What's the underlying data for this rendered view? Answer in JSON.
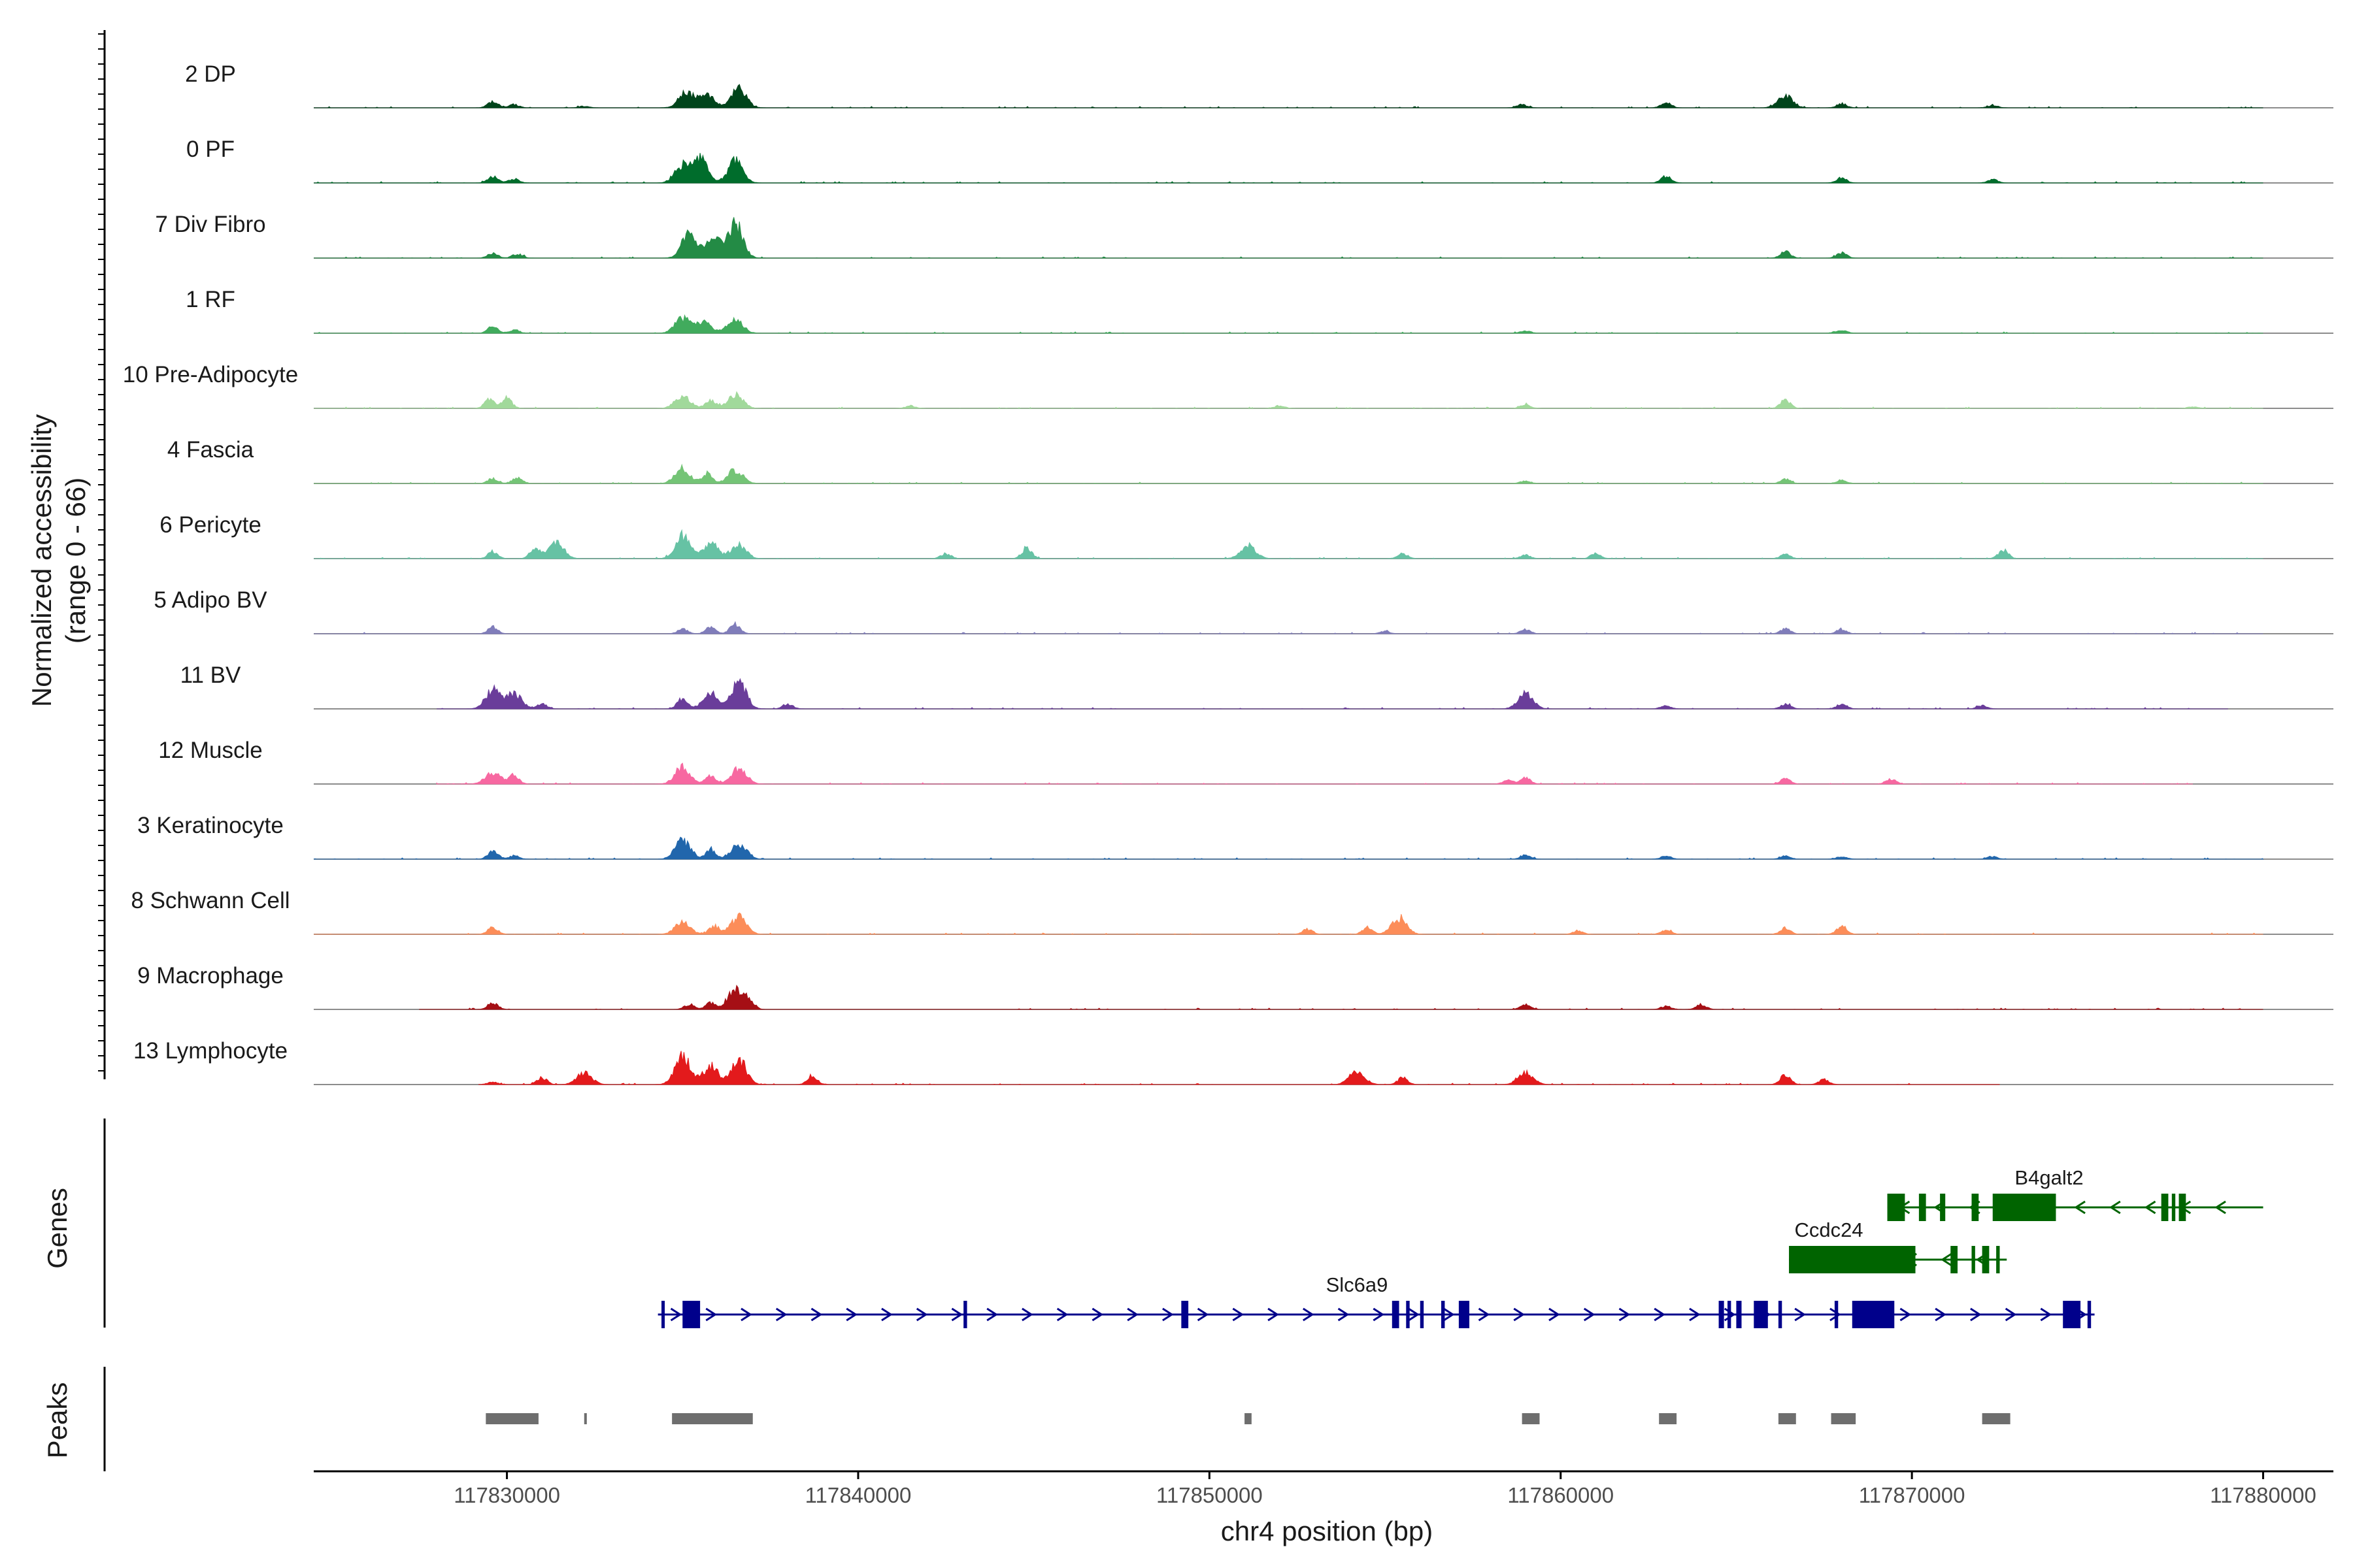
{
  "chart_data": {
    "type": "area",
    "title": "",
    "ylabel_line1": "Normalized accessibility",
    "ylabel_line2": "(range 0 - 66)",
    "xlabel": "chr4 position (bp)",
    "ylim": [
      0,
      66
    ],
    "xlim": [
      117824500,
      117882000
    ],
    "x_ticks": [
      117830000,
      117840000,
      117850000,
      117860000,
      117870000,
      117880000
    ],
    "x_tick_labels": [
      "117830000",
      "117840000",
      "117850000",
      "117860000",
      "117870000",
      "117880000"
    ],
    "tracks_label": "Genes",
    "peaks_label": "Peaks",
    "series": [
      {
        "name": "2 DP",
        "color": "#00441b",
        "start": 117824500,
        "end": 117880000,
        "peaks": [
          [
            117829600,
            8
          ],
          [
            117830200,
            4
          ],
          [
            117832200,
            2
          ],
          [
            117835100,
            18
          ],
          [
            117835700,
            16
          ],
          [
            117836600,
            22
          ],
          [
            117858900,
            4
          ],
          [
            117863000,
            6
          ],
          [
            117866400,
            14
          ],
          [
            117868000,
            5
          ],
          [
            117872300,
            3
          ]
        ]
      },
      {
        "name": "0 PF",
        "color": "#006d2c",
        "start": 117824500,
        "end": 117880000,
        "peaks": [
          [
            117829600,
            8
          ],
          [
            117830200,
            5
          ],
          [
            117835000,
            20
          ],
          [
            117835500,
            28
          ],
          [
            117836500,
            26
          ],
          [
            117863000,
            8
          ],
          [
            117868000,
            6
          ],
          [
            117872300,
            4
          ]
        ]
      },
      {
        "name": "7 Div Fibro",
        "color": "#238b45",
        "start": 117824500,
        "end": 117880000,
        "peaks": [
          [
            117829600,
            6
          ],
          [
            117830300,
            5
          ],
          [
            117835200,
            30
          ],
          [
            117835900,
            22
          ],
          [
            117836500,
            40
          ],
          [
            117866400,
            8
          ],
          [
            117868000,
            6
          ]
        ]
      },
      {
        "name": "1 RF",
        "color": "#41ab5d",
        "start": 117824500,
        "end": 117880000,
        "peaks": [
          [
            117829600,
            8
          ],
          [
            117830200,
            4
          ],
          [
            117835000,
            18
          ],
          [
            117835600,
            14
          ],
          [
            117836500,
            16
          ],
          [
            117859000,
            3
          ],
          [
            117868000,
            4
          ]
        ]
      },
      {
        "name": "10 Pre-Adipocyte",
        "color": "#a1d99b",
        "start": 117824500,
        "end": 117880000,
        "peaks": [
          [
            117829500,
            10
          ],
          [
            117830000,
            12
          ],
          [
            117835000,
            14
          ],
          [
            117835800,
            10
          ],
          [
            117836500,
            16
          ],
          [
            117841500,
            3
          ],
          [
            117852000,
            3
          ],
          [
            117859000,
            4
          ],
          [
            117866400,
            10
          ],
          [
            117878000,
            2
          ]
        ]
      },
      {
        "name": "4 Fascia",
        "color": "#74c476",
        "start": 117824500,
        "end": 117880000,
        "peaks": [
          [
            117829600,
            6
          ],
          [
            117830300,
            7
          ],
          [
            117835000,
            18
          ],
          [
            117835700,
            12
          ],
          [
            117836500,
            16
          ],
          [
            117859000,
            3
          ],
          [
            117866400,
            5
          ],
          [
            117868000,
            4
          ]
        ]
      },
      {
        "name": "6 Pericyte",
        "color": "#66c2a4",
        "start": 117824500,
        "end": 117880000,
        "peaks": [
          [
            117829600,
            8
          ],
          [
            117830800,
            12
          ],
          [
            117831400,
            18
          ],
          [
            117835000,
            26
          ],
          [
            117835800,
            18
          ],
          [
            117836600,
            16
          ],
          [
            117842500,
            6
          ],
          [
            117844800,
            12
          ],
          [
            117851100,
            16
          ],
          [
            117855500,
            6
          ],
          [
            117859000,
            4
          ],
          [
            117861000,
            6
          ],
          [
            117866400,
            5
          ],
          [
            117872600,
            10
          ]
        ]
      },
      {
        "name": "5 Adipo BV",
        "color": "#807dba",
        "start": 117824500,
        "end": 117880000,
        "peaks": [
          [
            117829600,
            8
          ],
          [
            117835000,
            6
          ],
          [
            117835800,
            8
          ],
          [
            117836500,
            12
          ],
          [
            117855000,
            3
          ],
          [
            117859000,
            5
          ],
          [
            117866400,
            6
          ],
          [
            117868000,
            5
          ]
        ]
      },
      {
        "name": "11 BV",
        "color": "#6a3d9a",
        "start": 117828000,
        "end": 117879000,
        "peaks": [
          [
            117829600,
            22
          ],
          [
            117830200,
            18
          ],
          [
            117831000,
            6
          ],
          [
            117835000,
            12
          ],
          [
            117835800,
            18
          ],
          [
            117836600,
            32
          ],
          [
            117838000,
            6
          ],
          [
            117859000,
            18
          ],
          [
            117863000,
            4
          ],
          [
            117866400,
            6
          ],
          [
            117868000,
            6
          ],
          [
            117872000,
            4
          ]
        ]
      },
      {
        "name": "12 Muscle",
        "color": "#f768a1",
        "start": 117828000,
        "end": 117878000,
        "peaks": [
          [
            117829600,
            14
          ],
          [
            117830200,
            10
          ],
          [
            117835000,
            20
          ],
          [
            117835800,
            10
          ],
          [
            117836600,
            18
          ],
          [
            117858500,
            5
          ],
          [
            117859000,
            7
          ],
          [
            117866400,
            6
          ],
          [
            117869400,
            6
          ]
        ]
      },
      {
        "name": "3 Keratinocyte",
        "color": "#2166ac",
        "start": 117824500,
        "end": 117880000,
        "peaks": [
          [
            117829600,
            10
          ],
          [
            117830200,
            4
          ],
          [
            117835000,
            22
          ],
          [
            117835800,
            12
          ],
          [
            117836600,
            18
          ],
          [
            117859000,
            5
          ],
          [
            117863000,
            4
          ],
          [
            117866400,
            4
          ],
          [
            117868000,
            3
          ],
          [
            117872300,
            3
          ]
        ]
      },
      {
        "name": "8 Schwann Cell",
        "color": "#fc8d59",
        "start": 117824500,
        "end": 117880000,
        "peaks": [
          [
            117829600,
            8
          ],
          [
            117835000,
            14
          ],
          [
            117835900,
            10
          ],
          [
            117836600,
            20
          ],
          [
            117852800,
            6
          ],
          [
            117854500,
            8
          ],
          [
            117855400,
            20
          ],
          [
            117860500,
            4
          ],
          [
            117863000,
            5
          ],
          [
            117866400,
            8
          ],
          [
            117868000,
            10
          ]
        ]
      },
      {
        "name": "9 Macrophage",
        "color": "#a50f15",
        "start": 117827500,
        "end": 117880000,
        "peaks": [
          [
            117829600,
            8
          ],
          [
            117835200,
            6
          ],
          [
            117835800,
            8
          ],
          [
            117836500,
            24
          ],
          [
            117836900,
            10
          ],
          [
            117859000,
            6
          ],
          [
            117863000,
            4
          ],
          [
            117864000,
            6
          ]
        ]
      },
      {
        "name": "13 Lymphocyte",
        "color": "#e31a1c",
        "start": 117829200,
        "end": 117872500,
        "peaks": [
          [
            117829600,
            3
          ],
          [
            117831000,
            8
          ],
          [
            117832200,
            14
          ],
          [
            117835000,
            34
          ],
          [
            117835800,
            22
          ],
          [
            117836600,
            30
          ],
          [
            117838700,
            10
          ],
          [
            117854200,
            16
          ],
          [
            117855500,
            8
          ],
          [
            117859000,
            14
          ],
          [
            117866400,
            12
          ],
          [
            117867500,
            6
          ]
        ]
      }
    ],
    "genes": [
      {
        "name": "B4galt2",
        "color": "#006400",
        "strand": "-",
        "row": 0,
        "start": 117869300,
        "end": 117880000,
        "exons": [
          [
            117869300,
            117869800
          ],
          [
            117870200,
            117870400
          ],
          [
            117870800,
            117870950
          ],
          [
            117871700,
            117871900
          ],
          [
            117872300,
            117874100
          ],
          [
            117877100,
            117877300
          ],
          [
            117877400,
            117877500
          ],
          [
            117877600,
            117877800
          ]
        ]
      },
      {
        "name": "Ccdc24",
        "color": "#006400",
        "strand": "-",
        "row": 1,
        "start": 117866500,
        "end": 117872700,
        "exons": [
          [
            117866500,
            117870100
          ],
          [
            117871100,
            117871300
          ],
          [
            117871700,
            117871800
          ],
          [
            117872000,
            117872200
          ],
          [
            117872400,
            117872500
          ]
        ]
      },
      {
        "name": "Slc6a9",
        "color": "#00008b",
        "strand": "+",
        "row": 2,
        "start": 117834300,
        "end": 117875200,
        "exons": [
          [
            117834400,
            117834480
          ],
          [
            117835000,
            117835500
          ],
          [
            117843000,
            117843100
          ],
          [
            117849200,
            117849400
          ],
          [
            117855200,
            117855400
          ],
          [
            117855600,
            117855700
          ],
          [
            117856000,
            117856100
          ],
          [
            117856600,
            117856700
          ],
          [
            117857100,
            117857400
          ],
          [
            117864500,
            117864650
          ],
          [
            117864750,
            117864850
          ],
          [
            117865000,
            117865150
          ],
          [
            117865500,
            117865900
          ],
          [
            117866200,
            117866300
          ],
          [
            117867800,
            117867900
          ],
          [
            117868300,
            117869500
          ],
          [
            117874300,
            117874800
          ],
          [
            117875000,
            117875100
          ]
        ]
      }
    ],
    "peak_regions": [
      [
        117829400,
        117830900
      ],
      [
        117832200,
        117832260
      ],
      [
        117834700,
        117837000
      ],
      [
        117851000,
        117851200
      ],
      [
        117858900,
        117859400
      ],
      [
        117862800,
        117863300
      ],
      [
        117866200,
        117866700
      ],
      [
        117867700,
        117868400
      ],
      [
        117872000,
        117872800
      ]
    ]
  }
}
